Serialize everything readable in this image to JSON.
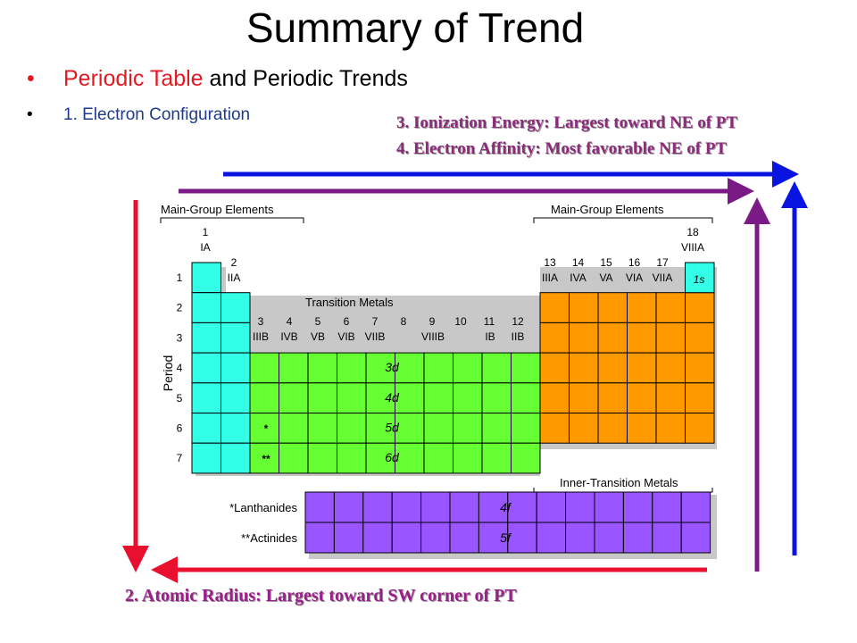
{
  "slide": {
    "title": "Summary of Trend",
    "bullet1_a": "Periodic Table",
    "bullet1_b": "and Periodic Trends",
    "bullet2": "1.  Electron Configuration",
    "trend3": "3. Ionization Energy: Largest toward NE of PT",
    "trend4": "4. Electron Affinity:   Most favorable NE of PT",
    "trend2": "2.  Atomic Radius:  Largest toward SW corner of PT"
  },
  "table": {
    "main_group_left": "Main-Group Elements",
    "main_group_right": "Main-Group Elements",
    "transition_metals": "Transition Metals",
    "inner_transition": "Inner-Transition Metals",
    "period_label": "Period",
    "lanthanides": "*Lanthanides",
    "actinides": "**Actinides",
    "group_1": "1",
    "group_1_roman": "IA",
    "group_2": "2",
    "group_2_roman": "IIA",
    "group_18": "18",
    "group_18_roman": "VIIIA",
    "groups_p": [
      "13",
      "14",
      "15",
      "16",
      "17"
    ],
    "groups_p_roman": [
      "IIIA",
      "IVA",
      "VA",
      "VIA",
      "VIIA"
    ],
    "groups_d": [
      "3",
      "4",
      "5",
      "6",
      "7",
      "8",
      "9",
      "10",
      "11",
      "12"
    ],
    "groups_d_roman": [
      "IIIB",
      "IVB",
      "VB",
      "VIB",
      "VIIB",
      "VIIIB",
      "IB",
      "IIB"
    ],
    "periods": [
      "1",
      "2",
      "3",
      "4",
      "5",
      "6",
      "7"
    ],
    "orbital_1s": "1s",
    "orbitals_d": [
      "3d",
      "4d",
      "5d",
      "6d"
    ],
    "orbitals_f": [
      "4f",
      "5f"
    ],
    "mark_lanthanide": "*",
    "mark_actinide": "**"
  },
  "colors": {
    "s_block": "#33ffe6",
    "d_block": "#66ff33",
    "p_block": "#ff9900",
    "f_block": "#9955ff",
    "arrow_red": "#e8102e",
    "arrow_blue": "#0a14e0",
    "arrow_purple": "#7a1a86"
  }
}
